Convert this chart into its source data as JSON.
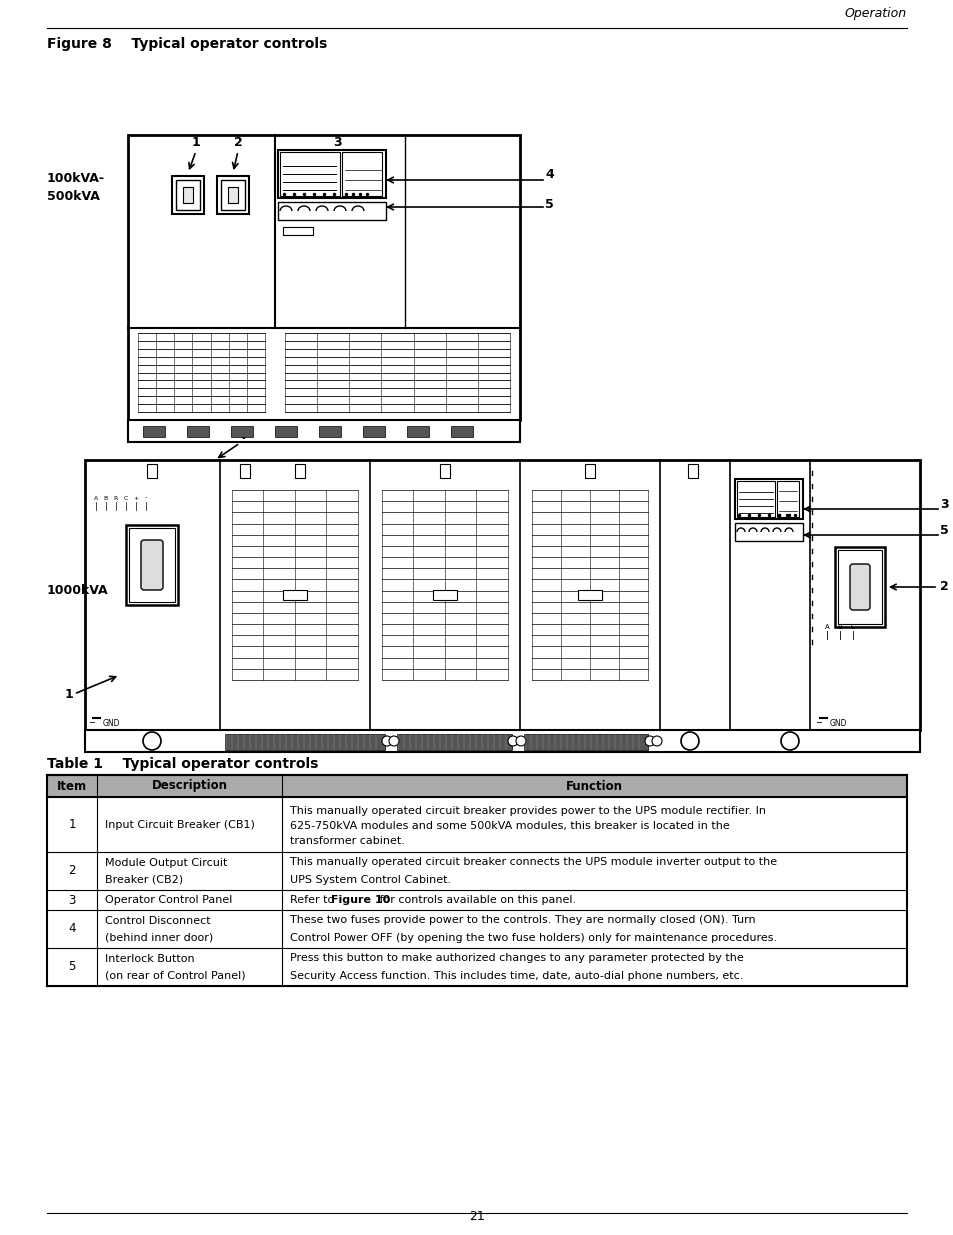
{
  "page_header_right": "Operation",
  "figure_title": "Figure 8    Typical operator controls",
  "table_title": "Table 1    Typical operator controls",
  "label_100_500": "100kVA-\n500kVA",
  "label_1000": "1000kVA",
  "page_number": "21",
  "table_rows": [
    [
      "1",
      "Input Circuit Breaker (CB1)",
      "This manually operated circuit breaker provides power to the UPS module rectifier. In\n625-750kVA modules and some 500kVA modules, this breaker is located in the\ntransformer cabinet."
    ],
    [
      "2",
      "Module Output Circuit\nBreaker (CB2)",
      "This manually operated circuit breaker connects the UPS module inverter output to the\nUPS System Control Cabinet."
    ],
    [
      "3",
      "Operator Control Panel",
      "Refer to @@Figure 10@@ for controls available on this panel."
    ],
    [
      "4",
      "Control Disconnect\n(behind inner door)",
      "These two fuses provide power to the controls. They are normally closed (ON). Turn\nControl Power OFF (by opening the two fuse holders) only for maintenance procedures."
    ],
    [
      "5",
      "Interlock Button\n(on rear of Control Panel)",
      "Press this button to make authorized changes to any parameter protected by the\nSecurity Access function. This includes time, date, auto-dial phone numbers, etc."
    ]
  ],
  "bg_color": "#ffffff"
}
